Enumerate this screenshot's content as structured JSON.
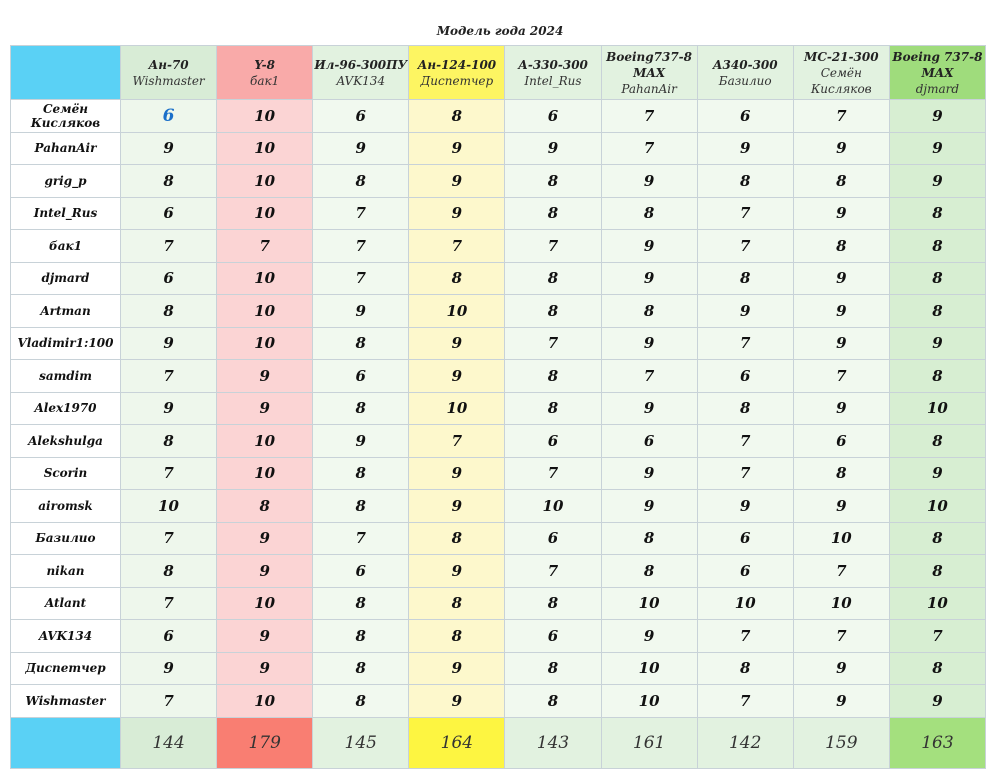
{
  "title": "Модель года 2024",
  "columns": [
    {
      "model": "Ан-70",
      "author": "Wishmaster",
      "head_bg": "#d8ecd6",
      "cell_bg": "#eef7ec",
      "total_bg": "#d8ecd6"
    },
    {
      "model": "Y-8",
      "author": "бак1",
      "head_bg": "#f9aaa9",
      "cell_bg": "#fbd4d4",
      "total_bg": "#f97e72"
    },
    {
      "model": "Ил-96-300ПУ",
      "author": "AVK134",
      "head_bg": "#e2f2e0",
      "cell_bg": "#f1f9ef",
      "total_bg": "#e2f2e0"
    },
    {
      "model": "Ан-124-100",
      "author": "Диспетчер",
      "head_bg": "#fdf562",
      "cell_bg": "#fdf8cc",
      "total_bg": "#fdf541"
    },
    {
      "model": "А-330-300",
      "author": "Intel_Rus",
      "head_bg": "#e2f2e0",
      "cell_bg": "#f1f9ef",
      "total_bg": "#e2f2e0"
    },
    {
      "model": "Boeing737-8 MAX",
      "author": "PahanAir",
      "head_bg": "#e2f2e0",
      "cell_bg": "#f1f9ef",
      "total_bg": "#e2f2e0"
    },
    {
      "model": "А340-300",
      "author": "Базилио",
      "head_bg": "#e2f2e0",
      "cell_bg": "#f1f9ef",
      "total_bg": "#e2f2e0"
    },
    {
      "model": "МС-21-300",
      "author": "Семён Кисляков",
      "head_bg": "#e2f2e0",
      "cell_bg": "#f1f9ef",
      "total_bg": "#e2f2e0"
    },
    {
      "model": "Boeing 737-8 MAX",
      "author": "djmard",
      "head_bg": "#9fdc7c",
      "cell_bg": "#d7eed2",
      "total_bg": "#a4e07e"
    }
  ],
  "rows": [
    {
      "name": "Семён Кисляков",
      "scores": [
        6,
        10,
        6,
        8,
        6,
        7,
        6,
        7,
        9
      ],
      "highlight": 0
    },
    {
      "name": "PahanAir",
      "scores": [
        9,
        10,
        9,
        9,
        9,
        7,
        9,
        9,
        9
      ]
    },
    {
      "name": "grig_p",
      "scores": [
        8,
        10,
        8,
        9,
        8,
        9,
        8,
        8,
        9
      ]
    },
    {
      "name": "Intel_Rus",
      "scores": [
        6,
        10,
        7,
        9,
        8,
        8,
        7,
        9,
        8
      ]
    },
    {
      "name": "бак1",
      "scores": [
        7,
        7,
        7,
        7,
        7,
        9,
        7,
        8,
        8
      ]
    },
    {
      "name": "djmard",
      "scores": [
        6,
        10,
        7,
        8,
        8,
        9,
        8,
        9,
        8
      ]
    },
    {
      "name": "Artman",
      "scores": [
        8,
        10,
        9,
        10,
        8,
        8,
        9,
        9,
        8
      ]
    },
    {
      "name": "Vladimir1:100",
      "scores": [
        9,
        10,
        8,
        9,
        7,
        9,
        7,
        9,
        9
      ]
    },
    {
      "name": "samdim",
      "scores": [
        7,
        9,
        6,
        9,
        8,
        7,
        6,
        7,
        8
      ]
    },
    {
      "name": "Alex1970",
      "scores": [
        9,
        9,
        8,
        10,
        8,
        9,
        8,
        9,
        10
      ]
    },
    {
      "name": "Alekshulga",
      "scores": [
        8,
        10,
        9,
        7,
        6,
        6,
        7,
        6,
        8
      ]
    },
    {
      "name": "Scorin",
      "scores": [
        7,
        10,
        8,
        9,
        7,
        9,
        7,
        8,
        9
      ]
    },
    {
      "name": "airomsk",
      "scores": [
        10,
        8,
        8,
        9,
        10,
        9,
        9,
        9,
        10
      ]
    },
    {
      "name": "Базилио",
      "scores": [
        7,
        9,
        7,
        8,
        6,
        8,
        6,
        10,
        8
      ]
    },
    {
      "name": "nikan",
      "scores": [
        8,
        9,
        6,
        9,
        7,
        8,
        6,
        7,
        8
      ]
    },
    {
      "name": "Atlant",
      "scores": [
        7,
        10,
        8,
        8,
        8,
        10,
        10,
        10,
        10
      ]
    },
    {
      "name": "AVK134",
      "scores": [
        6,
        9,
        8,
        8,
        6,
        9,
        7,
        7,
        7
      ]
    },
    {
      "name": "Диспетчер",
      "scores": [
        9,
        9,
        8,
        9,
        8,
        10,
        8,
        9,
        8
      ]
    },
    {
      "name": "Wishmaster",
      "scores": [
        7,
        10,
        8,
        9,
        8,
        10,
        7,
        9,
        9
      ]
    }
  ],
  "totals": [
    144,
    179,
    145,
    164,
    143,
    161,
    142,
    159,
    163
  ],
  "colors": {
    "corner": "#5ad1f5",
    "highlight_text": "#1a6fc9"
  }
}
